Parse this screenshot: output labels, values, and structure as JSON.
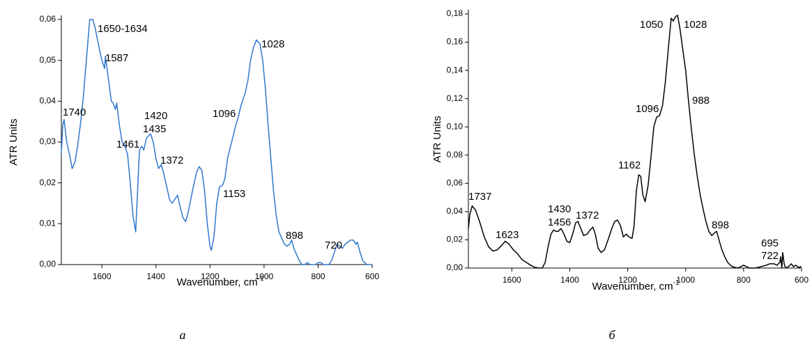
{
  "chart_data": [
    {
      "type": "line",
      "caption": "а",
      "y_label": "ATR Units",
      "x_label": "Wavenumber, cm",
      "x_label_superscript": "-1",
      "xlim": [
        1750,
        600
      ],
      "ylim": [
        0,
        0.06
      ],
      "xticks": [
        1600,
        1400,
        1200,
        1000,
        800,
        600
      ],
      "yticks": [
        {
          "value": 0,
          "label": "0,00"
        },
        {
          "value": 0.01,
          "label": "0,01"
        },
        {
          "value": 0.02,
          "label": "0,02"
        },
        {
          "value": 0.03,
          "label": "0,03"
        },
        {
          "value": 0.04,
          "label": "0,04"
        },
        {
          "value": 0.05,
          "label": "0,05"
        },
        {
          "value": 0.06,
          "label": "0,06"
        }
      ],
      "annotations": [
        "1650-1634",
        "1587",
        "1740",
        "1420",
        "1435",
        "1461",
        "1372",
        "1096",
        "1028",
        "1153",
        "898",
        "720"
      ],
      "x": [
        1750,
        1745,
        1740,
        1730,
        1720,
        1710,
        1700,
        1690,
        1680,
        1670,
        1660,
        1650,
        1645,
        1634,
        1625,
        1610,
        1600,
        1590,
        1587,
        1575,
        1565,
        1558,
        1550,
        1545,
        1535,
        1525,
        1515,
        1505,
        1495,
        1485,
        1475,
        1468,
        1461,
        1452,
        1445,
        1435,
        1420,
        1410,
        1400,
        1390,
        1380,
        1372,
        1360,
        1350,
        1340,
        1330,
        1320,
        1310,
        1300,
        1290,
        1280,
        1265,
        1250,
        1240,
        1230,
        1220,
        1210,
        1200,
        1195,
        1185,
        1175,
        1165,
        1153,
        1145,
        1135,
        1120,
        1105,
        1096,
        1085,
        1070,
        1060,
        1050,
        1040,
        1028,
        1015,
        1005,
        995,
        985,
        975,
        965,
        955,
        945,
        935,
        925,
        915,
        905,
        898,
        890,
        880,
        870,
        860,
        850,
        840,
        830,
        810,
        800,
        790,
        780,
        760,
        750,
        740,
        730,
        720,
        710,
        700,
        690,
        680,
        670,
        660,
        655,
        645,
        635,
        620,
        600
      ],
      "series": [
        {
          "color": "#2f77cc",
          "values": [
            0.027,
            0.034,
            0.0355,
            0.03,
            0.027,
            0.0235,
            0.025,
            0.029,
            0.034,
            0.04,
            0.048,
            0.056,
            0.06,
            0.06,
            0.058,
            0.053,
            0.05,
            0.048,
            0.051,
            0.045,
            0.04,
            0.0395,
            0.038,
            0.0395,
            0.034,
            0.03,
            0.029,
            0.027,
            0.02,
            0.012,
            0.008,
            0.018,
            0.028,
            0.029,
            0.028,
            0.031,
            0.032,
            0.03,
            0.026,
            0.0235,
            0.0245,
            0.0225,
            0.019,
            0.016,
            0.015,
            0.016,
            0.017,
            0.014,
            0.0115,
            0.0105,
            0.013,
            0.018,
            0.0225,
            0.024,
            0.023,
            0.018,
            0.01,
            0.0045,
            0.0035,
            0.007,
            0.015,
            0.019,
            0.0195,
            0.021,
            0.026,
            0.03,
            0.034,
            0.036,
            0.039,
            0.042,
            0.045,
            0.05,
            0.053,
            0.055,
            0.054,
            0.05,
            0.043,
            0.034,
            0.026,
            0.018,
            0.012,
            0.008,
            0.0065,
            0.005,
            0.0045,
            0.005,
            0.006,
            0.004,
            0.0025,
            0.001,
            0,
            0,
            0.0005,
            0,
            0,
            0.0005,
            0.0005,
            0,
            0,
            0.001,
            0.003,
            0.005,
            0.0045,
            0.004,
            0.005,
            0.0055,
            0.006,
            0.006,
            0.005,
            0.0055,
            0.003,
            0.001,
            0,
            0
          ]
        }
      ]
    },
    {
      "type": "line",
      "caption": "б",
      "y_label": "ATR Units",
      "x_label": "Wavenumber, cm",
      "x_label_superscript": "-1",
      "xlim": [
        1750,
        600
      ],
      "ylim": [
        0,
        0.18
      ],
      "xticks": [
        1600,
        1400,
        1200,
        1000,
        800,
        600
      ],
      "yticks": [
        {
          "value": 0,
          "label": "0,00"
        },
        {
          "value": 0.02,
          "label": "0,02"
        },
        {
          "value": 0.04,
          "label": "0,04"
        },
        {
          "value": 0.06,
          "label": "0,06"
        },
        {
          "value": 0.08,
          "label": "0,08"
        },
        {
          "value": 0.1,
          "label": "0,10"
        },
        {
          "value": 0.12,
          "label": "0,12"
        },
        {
          "value": 0.14,
          "label": "0,14"
        },
        {
          "value": 0.16,
          "label": "0,16"
        },
        {
          "value": 0.18,
          "label": "0,18"
        }
      ],
      "annotations": [
        "1050",
        "1028",
        "1096",
        "988",
        "1162",
        "1737",
        "1623",
        "1430",
        "1456",
        "1372",
        "898",
        "695",
        "722"
      ],
      "x": [
        1750,
        1745,
        1737,
        1725,
        1710,
        1695,
        1680,
        1665,
        1650,
        1635,
        1623,
        1610,
        1595,
        1580,
        1565,
        1550,
        1535,
        1520,
        1505,
        1495,
        1485,
        1475,
        1465,
        1456,
        1448,
        1440,
        1430,
        1420,
        1410,
        1400,
        1390,
        1380,
        1372,
        1362,
        1352,
        1340,
        1330,
        1320,
        1312,
        1302,
        1292,
        1280,
        1268,
        1255,
        1245,
        1235,
        1225,
        1215,
        1205,
        1195,
        1185,
        1178,
        1170,
        1162,
        1155,
        1148,
        1140,
        1130,
        1120,
        1110,
        1100,
        1090,
        1080,
        1070,
        1060,
        1050,
        1043,
        1035,
        1028,
        1020,
        1010,
        1000,
        990,
        980,
        970,
        960,
        950,
        940,
        930,
        920,
        910,
        900,
        893,
        885,
        875,
        865,
        855,
        840,
        820,
        800,
        790,
        780,
        760,
        740,
        722,
        710,
        700,
        695,
        685,
        675,
        672,
        668,
        665,
        660,
        655,
        645,
        635,
        628,
        620,
        610,
        600
      ],
      "series": [
        {
          "color": "#000000",
          "values": [
            0.028,
            0.038,
            0.044,
            0.041,
            0.032,
            0.022,
            0.015,
            0.012,
            0.013,
            0.016,
            0.019,
            0.017,
            0.013,
            0.01,
            0.006,
            0.004,
            0.002,
            0.0005,
            0,
            0,
            0.004,
            0.015,
            0.024,
            0.027,
            0.026,
            0.026,
            0.028,
            0.024,
            0.019,
            0.018,
            0.024,
            0.032,
            0.033,
            0.028,
            0.023,
            0.024,
            0.027,
            0.029,
            0.024,
            0.014,
            0.011,
            0.013,
            0.02,
            0.028,
            0.033,
            0.034,
            0.03,
            0.022,
            0.024,
            0.022,
            0.021,
            0.03,
            0.055,
            0.066,
            0.065,
            0.052,
            0.047,
            0.058,
            0.078,
            0.1,
            0.107,
            0.108,
            0.115,
            0.132,
            0.155,
            0.177,
            0.175,
            0.178,
            0.179,
            0.17,
            0.155,
            0.14,
            0.118,
            0.098,
            0.08,
            0.065,
            0.052,
            0.042,
            0.033,
            0.026,
            0.023,
            0.025,
            0.026,
            0.02,
            0.013,
            0.008,
            0.004,
            0.001,
            0,
            0.002,
            0.001,
            0,
            0,
            0.001,
            0.002,
            0.003,
            0.003,
            0.003,
            0.002,
            0.004,
            0.008,
            0,
            0.011,
            0.003,
            0,
            0.001,
            0.003,
            0.001,
            0.002,
            0.0005,
            0.001
          ]
        }
      ]
    }
  ]
}
